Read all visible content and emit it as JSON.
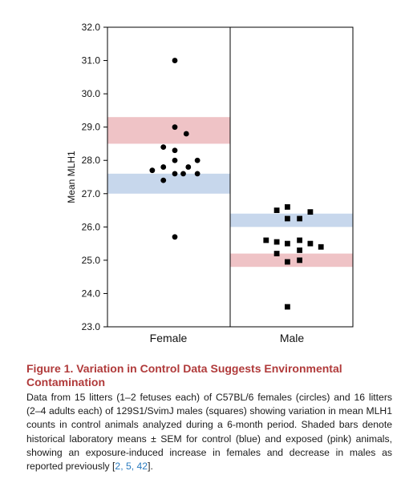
{
  "chart_data": {
    "type": "scatter",
    "ylabel": "Mean MLH1",
    "ylim": [
      23.0,
      32.0
    ],
    "yticks": [
      "23.0",
      "24.0",
      "25.0",
      "26.0",
      "27.0",
      "28.0",
      "29.0",
      "30.0",
      "31.0",
      "32.0"
    ],
    "categories": [
      "Female",
      "Male"
    ],
    "series": [
      {
        "category": "Female",
        "marker": "circle",
        "points": [
          {
            "x": 0.0,
            "y": 31.0
          },
          {
            "x": 0.0,
            "y": 29.0
          },
          {
            "x": 0.34,
            "y": 28.8
          },
          {
            "x": -0.34,
            "y": 28.4
          },
          {
            "x": 0.0,
            "y": 28.3
          },
          {
            "x": 0.0,
            "y": 28.0
          },
          {
            "x": 0.67,
            "y": 28.0
          },
          {
            "x": -0.67,
            "y": 27.7
          },
          {
            "x": -0.34,
            "y": 27.8
          },
          {
            "x": 0.4,
            "y": 27.8
          },
          {
            "x": 0.0,
            "y": 27.6
          },
          {
            "x": 0.25,
            "y": 27.6
          },
          {
            "x": 0.67,
            "y": 27.6
          },
          {
            "x": -0.34,
            "y": 27.4
          },
          {
            "x": 0.0,
            "y": 25.7
          }
        ]
      },
      {
        "category": "Male",
        "marker": "square",
        "points": [
          {
            "x": -0.2,
            "y": 26.6
          },
          {
            "x": -0.55,
            "y": 26.5
          },
          {
            "x": 0.55,
            "y": 26.45
          },
          {
            "x": -0.2,
            "y": 26.25
          },
          {
            "x": 0.2,
            "y": 26.25
          },
          {
            "x": -0.9,
            "y": 25.6
          },
          {
            "x": -0.55,
            "y": 25.55
          },
          {
            "x": 0.2,
            "y": 25.6
          },
          {
            "x": -0.2,
            "y": 25.5
          },
          {
            "x": 0.55,
            "y": 25.5
          },
          {
            "x": 0.9,
            "y": 25.4
          },
          {
            "x": 0.2,
            "y": 25.3
          },
          {
            "x": -0.55,
            "y": 25.2
          },
          {
            "x": 0.2,
            "y": 25.0
          },
          {
            "x": -0.2,
            "y": 24.95
          },
          {
            "x": -0.2,
            "y": 23.6
          }
        ]
      }
    ],
    "bands": [
      {
        "category": "Female",
        "kind": "exposed",
        "color": "#efc3c6",
        "y0": 28.5,
        "y1": 29.3
      },
      {
        "category": "Female",
        "kind": "control",
        "color": "#c7d7ec",
        "y0": 27.0,
        "y1": 27.6
      },
      {
        "category": "Male",
        "kind": "control",
        "color": "#c7d7ec",
        "y0": 26.0,
        "y1": 26.4
      },
      {
        "category": "Male",
        "kind": "exposed",
        "color": "#efc3c6",
        "y0": 24.8,
        "y1": 25.2
      }
    ],
    "grid": false
  },
  "caption": {
    "title": "Figure 1. Variation in Control Data Suggests Environmental Contamination",
    "body": "Data from 15 litters (1–2 fetuses each) of C57BL/6 females (circles) and 16 litters (2–4 adults each) of 129S1/SvimJ males (squares) showing variation in mean MLH1 counts in control animals analyzed during a 6-month period. Shaded bars denote historical laboratory means ± SEM for control (blue) and exposed (pink) animals, showing an exposure-induced increase in females and decrease in males as reported previously [",
    "refs": "2, 5, 42",
    "body_end": "]."
  },
  "colors": {
    "title_red": "#b03a3a",
    "link_blue": "#2a7bbf"
  }
}
